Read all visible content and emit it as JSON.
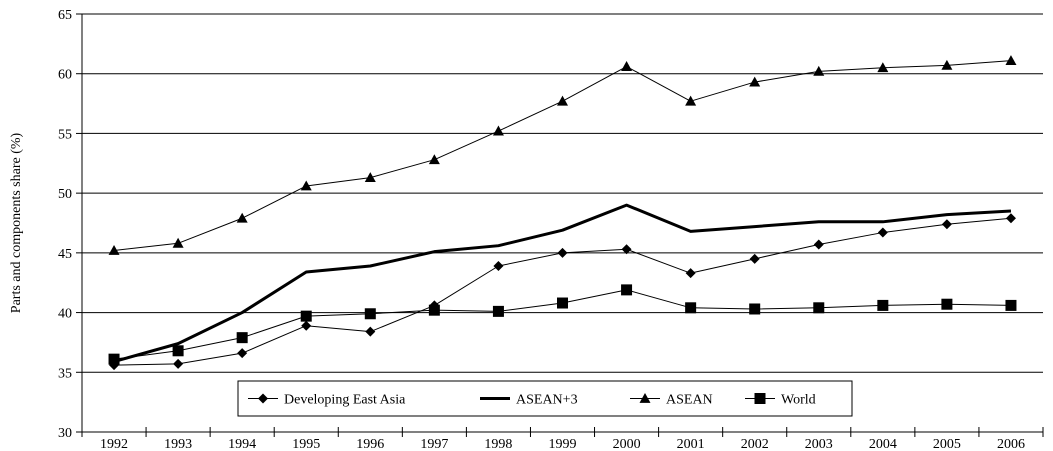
{
  "chart_data": {
    "type": "line",
    "title": "",
    "xlabel": "",
    "ylabel": "Parts and components share (%)",
    "ylim": [
      30,
      65
    ],
    "yticks": [
      30,
      35,
      40,
      45,
      50,
      55,
      60,
      65
    ],
    "grid": true,
    "legend_position": "bottom-left",
    "categories": [
      "1992",
      "1993",
      "1994",
      "1995",
      "1996",
      "1997",
      "1998",
      "1999",
      "2000",
      "2001",
      "2002",
      "2003",
      "2004",
      "2005",
      "2006"
    ],
    "series": [
      {
        "name": "Developing East Asia",
        "marker": "diamond",
        "line_width": 1,
        "color": "#000000",
        "values": [
          35.6,
          35.7,
          36.6,
          38.9,
          38.4,
          40.6,
          43.9,
          45.0,
          45.3,
          43.3,
          44.5,
          45.7,
          46.7,
          47.4,
          47.9
        ]
      },
      {
        "name": "ASEAN+3",
        "marker": "none",
        "line_width": 3,
        "color": "#000000",
        "values": [
          35.9,
          37.4,
          40.0,
          43.4,
          43.9,
          45.1,
          45.6,
          46.9,
          49.0,
          46.8,
          47.2,
          47.6,
          47.6,
          48.2,
          48.5
        ]
      },
      {
        "name": "ASEAN",
        "marker": "triangle",
        "line_width": 1,
        "color": "#000000",
        "values": [
          45.2,
          45.8,
          47.9,
          50.6,
          51.3,
          52.8,
          55.2,
          57.7,
          60.6,
          57.7,
          59.3,
          60.2,
          60.5,
          60.7,
          61.1
        ]
      },
      {
        "name": "World",
        "marker": "square",
        "line_width": 1,
        "color": "#000000",
        "values": [
          36.1,
          36.8,
          37.9,
          39.7,
          39.9,
          40.2,
          40.1,
          40.8,
          41.9,
          40.4,
          40.3,
          40.4,
          40.6,
          40.7,
          40.6
        ]
      }
    ]
  }
}
